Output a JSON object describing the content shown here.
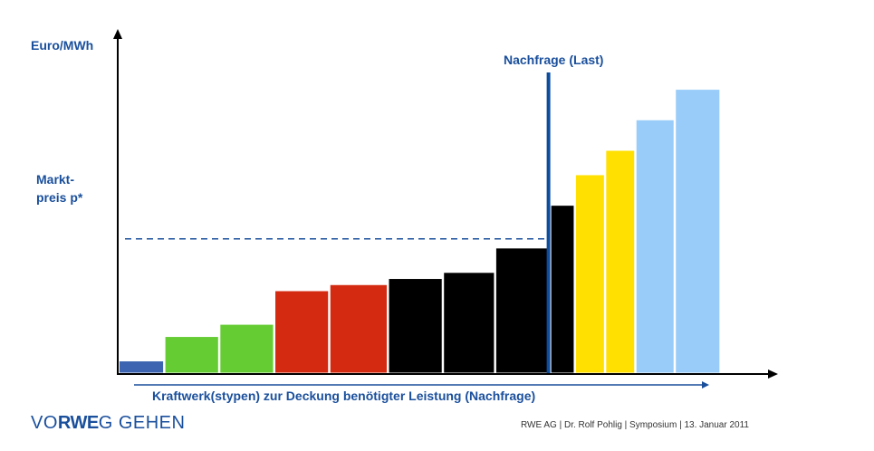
{
  "chart_data": {
    "type": "bar",
    "ylabel": "Euro/MWh",
    "xlabel": "Kraftwerk(stypen) zur Deckung benötigter Leistung (Nachfrage)",
    "market_price_label_line1": "Markt-",
    "market_price_label_line2": "preis p*",
    "demand_label": "Nachfrage (Last)",
    "market_price": 44,
    "demand_capacity": 46.9,
    "x_range": [
      0,
      67
    ],
    "y_range": [
      0,
      100
    ],
    "bars": [
      {
        "start": 0,
        "width": 5,
        "value": 4,
        "color": "#3c64b0"
      },
      {
        "start": 5,
        "width": 6,
        "value": 12,
        "color": "#66cc33"
      },
      {
        "start": 11,
        "width": 6,
        "value": 16,
        "color": "#66cc33"
      },
      {
        "start": 17,
        "width": 6,
        "value": 27,
        "color": "#d42a11"
      },
      {
        "start": 23,
        "width": 6.4,
        "value": 29,
        "color": "#d42a11"
      },
      {
        "start": 29.4,
        "width": 6,
        "value": 31,
        "color": "#000000"
      },
      {
        "start": 35.4,
        "width": 5.7,
        "value": 33,
        "color": "#000000"
      },
      {
        "start": 41.1,
        "width": 6,
        "value": 41,
        "color": "#000000"
      },
      {
        "start": 47.1,
        "width": 2.7,
        "value": 55,
        "color": "#000000"
      },
      {
        "start": 49.8,
        "width": 3.3,
        "value": 65,
        "color": "#ffe000"
      },
      {
        "start": 53.1,
        "width": 3.3,
        "value": 73,
        "color": "#ffe000"
      },
      {
        "start": 56.4,
        "width": 4.3,
        "value": 83,
        "color": "#99ccf9"
      },
      {
        "start": 60.7,
        "width": 5,
        "value": 93,
        "color": "#99ccf9"
      }
    ]
  },
  "logo": {
    "part1": "VO",
    "part2": "RWE",
    "part3": "G GEHEN"
  },
  "footer": "RWE AG | Dr. Rolf Pohlig | Symposium | 13. Januar 2011",
  "colors": {
    "accent": "#1a4f9c",
    "demand_line": "#0d4d9e"
  }
}
